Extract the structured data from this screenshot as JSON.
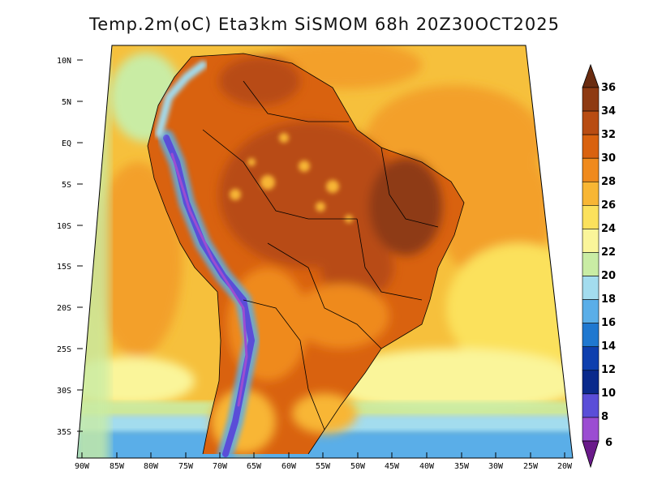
{
  "title": "Temp.2m(oC) Eta3km SiSMOM 68h 20Z30OCT2025",
  "axes": {
    "latitude_ticks": [
      "10N",
      "5N",
      "EQ",
      "5S",
      "10S",
      "15S",
      "20S",
      "25S",
      "30S",
      "35S"
    ],
    "longitude_ticks": [
      "90W",
      "85W",
      "80W",
      "75W",
      "70W",
      "65W",
      "60W",
      "55W",
      "50W",
      "45W",
      "40W",
      "35W",
      "30W",
      "25W",
      "20W"
    ]
  },
  "colorbar": {
    "unit": "oC",
    "labels": [
      "36",
      "34",
      "32",
      "30",
      "28",
      "26",
      "24",
      "22",
      "20",
      "18",
      "16",
      "14",
      "12",
      "10",
      "8",
      "6"
    ],
    "colors": [
      "#6a2c10",
      "#8e3a12",
      "#b84c12",
      "#d9620f",
      "#ef8a1d",
      "#f8b634",
      "#fbe15c",
      "#faf59a",
      "#c9eca4",
      "#a3dcee",
      "#5aaee8",
      "#1f78d0",
      "#0e3fae",
      "#0a2a8c",
      "#5a4ed8",
      "#9b4dd2",
      "#6a1a8a"
    ]
  }
}
